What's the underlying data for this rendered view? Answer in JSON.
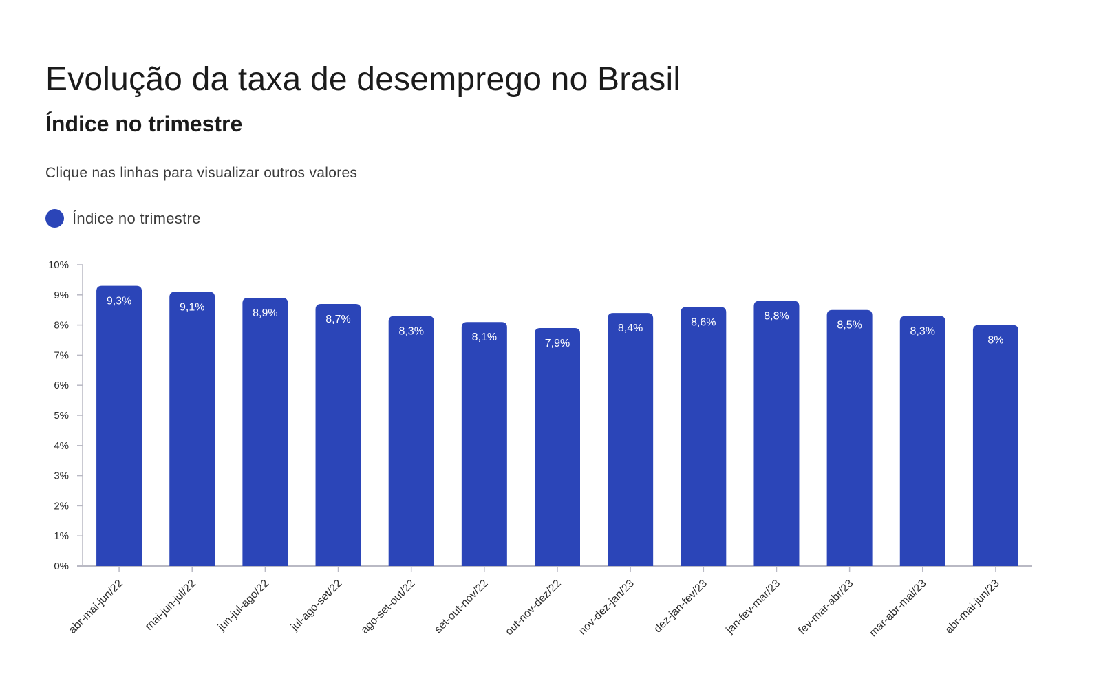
{
  "header": {
    "title": "Evolução da taxa de desemprego no Brasil",
    "subtitle": "Índice no trimestre",
    "hint": "Clique nas linhas para visualizar outros valores"
  },
  "legend": {
    "label": "Índice no trimestre",
    "color": "#2b45b8"
  },
  "colors": {
    "bar": "#2b45b8",
    "bar_label": "#ffffff",
    "axis": "#b9b9c4"
  },
  "chart_data": {
    "type": "bar",
    "categories": [
      "abr-mai-jun/22",
      "mai-jun-jul/22",
      "jun-jul-ago/22",
      "jul-ago-set/22",
      "ago-set-out/22",
      "set-out-nov/22",
      "out-nov-dez/22",
      "nov-dez-jan/23",
      "dez-jan-fev/23",
      "jan-fev-mar/23",
      "fev-mar-abr/23",
      "mar-abr-mai/23",
      "abr-mai-jun/23"
    ],
    "series": [
      {
        "name": "Índice no trimestre",
        "values": [
          9.3,
          9.1,
          8.9,
          8.7,
          8.3,
          8.1,
          7.9,
          8.4,
          8.6,
          8.8,
          8.5,
          8.3,
          8.0
        ],
        "labels": [
          "9,3%",
          "9,1%",
          "8,9%",
          "8,7%",
          "8,3%",
          "8,1%",
          "7,9%",
          "8,4%",
          "8,6%",
          "8,8%",
          "8,5%",
          "8,3%",
          "8%"
        ]
      }
    ],
    "y_ticks": [
      "0%",
      "1%",
      "2%",
      "3%",
      "4%",
      "5%",
      "6%",
      "7%",
      "8%",
      "9%",
      "10%"
    ],
    "ylim": [
      0,
      10
    ],
    "grid": false
  }
}
